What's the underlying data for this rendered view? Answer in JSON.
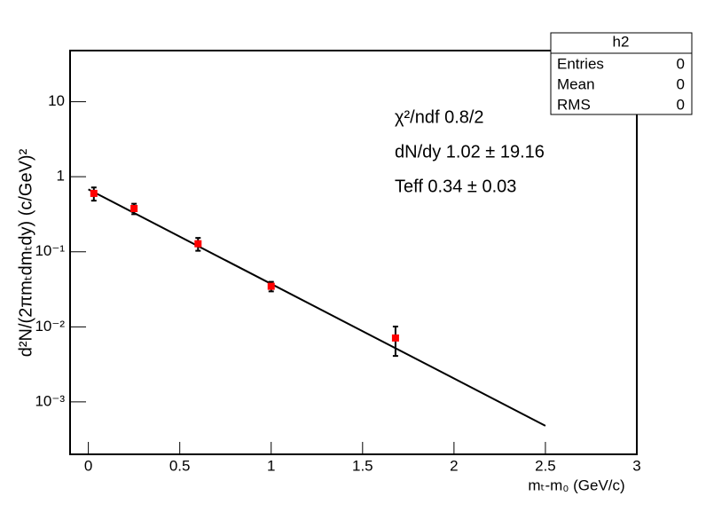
{
  "chart_data": {
    "type": "scatter",
    "x_label": "mₜ-m₀ (GeV/c)",
    "y_label": "d²N/(2πmₜdmₜdy) (c/GeV)²",
    "xlim": [
      -0.1,
      3
    ],
    "xticks": [
      0,
      0.5,
      1,
      1.5,
      2,
      2.5,
      3
    ],
    "ylim": [
      0.0002,
      48
    ],
    "log_y": true,
    "yticks": [
      {
        "value": 0.001,
        "label": "10⁻³"
      },
      {
        "value": 0.01,
        "label": "10⁻²"
      },
      {
        "value": 0.1,
        "label": "10⁻¹"
      },
      1,
      10
    ],
    "series": [
      {
        "color": "#ff0000",
        "x": [
          0.03,
          0.25,
          0.6,
          1.0,
          1.68
        ],
        "values": [
          0.6,
          0.377,
          0.128,
          0.0347,
          0.0071
        ],
        "errors": [
          0.12,
          0.06,
          0.025,
          0.005,
          0.003
        ]
      }
    ],
    "fit": {
      "color": "#000000",
      "x": [
        0,
        2.5
      ],
      "values": [
        0.68,
        0.00048
      ]
    },
    "annotations": [
      "χ²/ndf  0.8/2",
      "dN/dy  1.02 ± 19.16",
      "Teff  0.34 ± 0.03"
    ],
    "stats": {
      "title": "h2",
      "rows": [
        {
          "label": "Entries",
          "value": 0
        },
        {
          "label": "Mean",
          "value": 0
        },
        {
          "label": "RMS",
          "value": 0
        }
      ]
    }
  }
}
